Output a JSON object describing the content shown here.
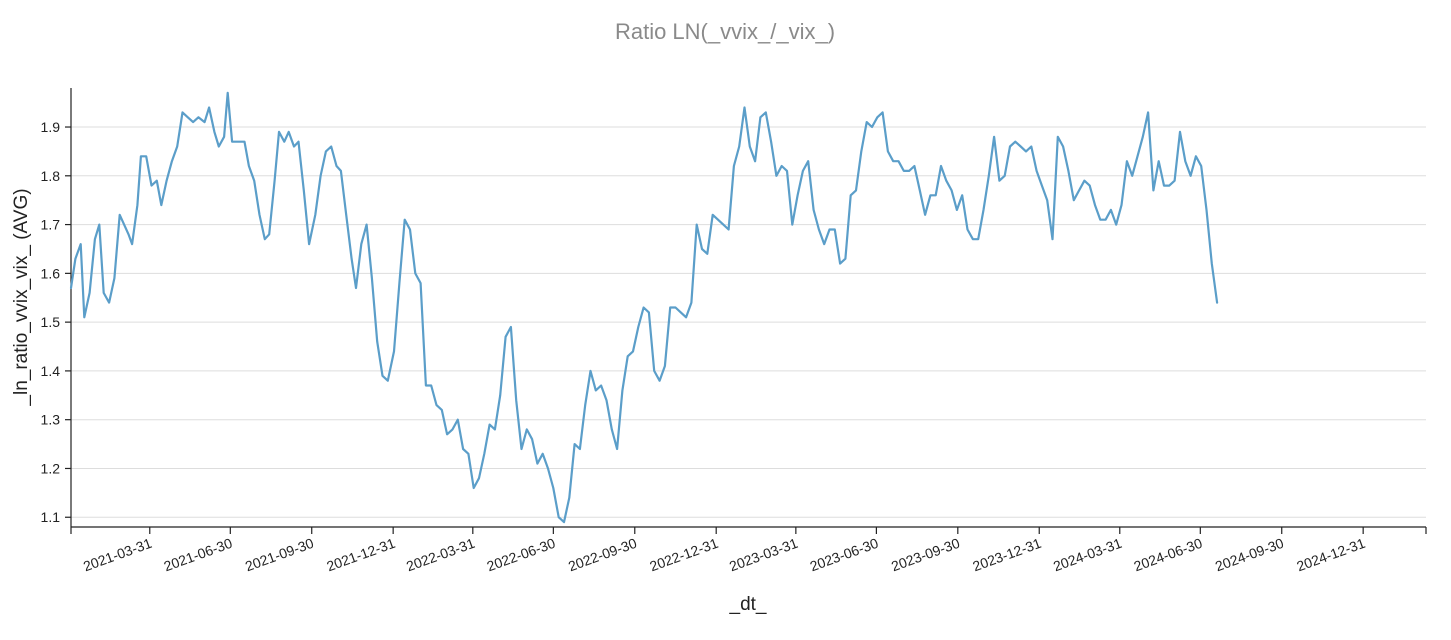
{
  "chart_data": {
    "type": "line",
    "title": "Ratio LN(_vvix_/_vix_)",
    "xlabel": "_dt_",
    "ylabel": "_ln_ratio_vvix_vix_ (AVG)",
    "x_range": [
      "2021-01-01",
      "2025-03-12"
    ],
    "ylim": [
      1.08,
      1.98
    ],
    "x_ticks": [
      "2021-03-31",
      "2021-06-30",
      "2021-09-30",
      "2021-12-31",
      "2022-03-31",
      "2022-06-30",
      "2022-09-30",
      "2022-12-31",
      "2023-03-31",
      "2023-06-30",
      "2023-09-30",
      "2023-12-31",
      "2024-03-31",
      "2024-06-30",
      "2024-09-30",
      "2024-12-31"
    ],
    "y_ticks": [
      "1.1",
      "1.2",
      "1.3",
      "1.4",
      "1.5",
      "1.6",
      "1.7",
      "1.8",
      "1.9"
    ],
    "grid": "horizontal",
    "series": [
      {
        "color": "#5b9ec9",
        "points": [
          [
            "2021-01-01",
            1.57
          ],
          [
            "2021-01-06",
            1.63
          ],
          [
            "2021-01-12",
            1.66
          ],
          [
            "2021-01-16",
            1.51
          ],
          [
            "2021-01-22",
            1.56
          ],
          [
            "2021-01-28",
            1.67
          ],
          [
            "2021-02-02",
            1.7
          ],
          [
            "2021-02-07",
            1.56
          ],
          [
            "2021-02-13",
            1.54
          ],
          [
            "2021-02-19",
            1.59
          ],
          [
            "2021-02-25",
            1.72
          ],
          [
            "2021-03-02",
            1.7
          ],
          [
            "2021-03-07",
            1.68
          ],
          [
            "2021-03-11",
            1.66
          ],
          [
            "2021-03-17",
            1.74
          ],
          [
            "2021-03-21",
            1.84
          ],
          [
            "2021-03-27",
            1.84
          ],
          [
            "2021-04-02",
            1.78
          ],
          [
            "2021-04-08",
            1.79
          ],
          [
            "2021-04-13",
            1.74
          ],
          [
            "2021-04-19",
            1.79
          ],
          [
            "2021-04-25",
            1.83
          ],
          [
            "2021-05-01",
            1.86
          ],
          [
            "2021-05-07",
            1.93
          ],
          [
            "2021-05-13",
            1.92
          ],
          [
            "2021-05-19",
            1.91
          ],
          [
            "2021-05-25",
            1.92
          ],
          [
            "2021-06-01",
            1.91
          ],
          [
            "2021-06-06",
            1.94
          ],
          [
            "2021-06-12",
            1.89
          ],
          [
            "2021-06-17",
            1.86
          ],
          [
            "2021-06-23",
            1.88
          ],
          [
            "2021-06-27",
            1.97
          ],
          [
            "2021-07-02",
            1.87
          ],
          [
            "2021-07-09",
            1.87
          ],
          [
            "2021-07-16",
            1.87
          ],
          [
            "2021-07-21",
            1.82
          ],
          [
            "2021-07-27",
            1.79
          ],
          [
            "2021-08-02",
            1.72
          ],
          [
            "2021-08-08",
            1.67
          ],
          [
            "2021-08-13",
            1.68
          ],
          [
            "2021-08-19",
            1.79
          ],
          [
            "2021-08-24",
            1.89
          ],
          [
            "2021-08-30",
            1.87
          ],
          [
            "2021-09-04",
            1.89
          ],
          [
            "2021-09-10",
            1.86
          ],
          [
            "2021-09-15",
            1.87
          ],
          [
            "2021-09-21",
            1.77
          ],
          [
            "2021-09-27",
            1.66
          ],
          [
            "2021-10-04",
            1.72
          ],
          [
            "2021-10-10",
            1.8
          ],
          [
            "2021-10-16",
            1.85
          ],
          [
            "2021-10-22",
            1.86
          ],
          [
            "2021-10-28",
            1.82
          ],
          [
            "2021-11-02",
            1.81
          ],
          [
            "2021-11-08",
            1.72
          ],
          [
            "2021-11-14",
            1.63
          ],
          [
            "2021-11-19",
            1.57
          ],
          [
            "2021-11-25",
            1.66
          ],
          [
            "2021-12-01",
            1.7
          ],
          [
            "2021-12-07",
            1.59
          ],
          [
            "2021-12-13",
            1.46
          ],
          [
            "2021-12-19",
            1.39
          ],
          [
            "2021-12-25",
            1.38
          ],
          [
            "2022-01-01",
            1.44
          ],
          [
            "2022-01-07",
            1.58
          ],
          [
            "2022-01-13",
            1.71
          ],
          [
            "2022-01-19",
            1.69
          ],
          [
            "2022-01-25",
            1.6
          ],
          [
            "2022-01-31",
            1.58
          ],
          [
            "2022-02-06",
            1.37
          ],
          [
            "2022-02-12",
            1.37
          ],
          [
            "2022-02-18",
            1.33
          ],
          [
            "2022-02-24",
            1.32
          ],
          [
            "2022-03-02",
            1.27
          ],
          [
            "2022-03-08",
            1.28
          ],
          [
            "2022-03-14",
            1.3
          ],
          [
            "2022-03-20",
            1.24
          ],
          [
            "2022-03-26",
            1.23
          ],
          [
            "2022-04-01",
            1.16
          ],
          [
            "2022-04-07",
            1.18
          ],
          [
            "2022-04-13",
            1.23
          ],
          [
            "2022-04-19",
            1.29
          ],
          [
            "2022-04-25",
            1.28
          ],
          [
            "2022-05-01",
            1.35
          ],
          [
            "2022-05-07",
            1.47
          ],
          [
            "2022-05-13",
            1.49
          ],
          [
            "2022-05-19",
            1.34
          ],
          [
            "2022-05-25",
            1.24
          ],
          [
            "2022-05-31",
            1.28
          ],
          [
            "2022-06-06",
            1.26
          ],
          [
            "2022-06-12",
            1.21
          ],
          [
            "2022-06-18",
            1.23
          ],
          [
            "2022-06-24",
            1.2
          ],
          [
            "2022-06-30",
            1.16
          ],
          [
            "2022-07-06",
            1.1
          ],
          [
            "2022-07-12",
            1.09
          ],
          [
            "2022-07-18",
            1.14
          ],
          [
            "2022-07-24",
            1.25
          ],
          [
            "2022-07-30",
            1.24
          ],
          [
            "2022-08-05",
            1.33
          ],
          [
            "2022-08-11",
            1.4
          ],
          [
            "2022-08-17",
            1.36
          ],
          [
            "2022-08-23",
            1.37
          ],
          [
            "2022-08-29",
            1.34
          ],
          [
            "2022-09-04",
            1.28
          ],
          [
            "2022-09-10",
            1.24
          ],
          [
            "2022-09-16",
            1.36
          ],
          [
            "2022-09-22",
            1.43
          ],
          [
            "2022-09-28",
            1.44
          ],
          [
            "2022-10-04",
            1.49
          ],
          [
            "2022-10-10",
            1.53
          ],
          [
            "2022-10-16",
            1.52
          ],
          [
            "2022-10-22",
            1.4
          ],
          [
            "2022-10-28",
            1.38
          ],
          [
            "2022-11-03",
            1.41
          ],
          [
            "2022-11-09",
            1.53
          ],
          [
            "2022-11-15",
            1.53
          ],
          [
            "2022-11-21",
            1.52
          ],
          [
            "2022-11-27",
            1.51
          ],
          [
            "2022-12-03",
            1.54
          ],
          [
            "2022-12-09",
            1.7
          ],
          [
            "2022-12-15",
            1.65
          ],
          [
            "2022-12-21",
            1.64
          ],
          [
            "2022-12-27",
            1.72
          ],
          [
            "2023-01-02",
            1.71
          ],
          [
            "2023-01-08",
            1.7
          ],
          [
            "2023-01-14",
            1.69
          ],
          [
            "2023-01-20",
            1.82
          ],
          [
            "2023-01-26",
            1.86
          ],
          [
            "2023-02-01",
            1.94
          ],
          [
            "2023-02-07",
            1.86
          ],
          [
            "2023-02-13",
            1.83
          ],
          [
            "2023-02-19",
            1.92
          ],
          [
            "2023-02-25",
            1.93
          ],
          [
            "2023-03-03",
            1.87
          ],
          [
            "2023-03-09",
            1.8
          ],
          [
            "2023-03-15",
            1.82
          ],
          [
            "2023-03-21",
            1.81
          ],
          [
            "2023-03-27",
            1.7
          ],
          [
            "2023-04-02",
            1.76
          ],
          [
            "2023-04-08",
            1.81
          ],
          [
            "2023-04-14",
            1.83
          ],
          [
            "2023-04-20",
            1.73
          ],
          [
            "2023-04-26",
            1.69
          ],
          [
            "2023-05-02",
            1.66
          ],
          [
            "2023-05-08",
            1.69
          ],
          [
            "2023-05-14",
            1.69
          ],
          [
            "2023-05-20",
            1.62
          ],
          [
            "2023-05-26",
            1.63
          ],
          [
            "2023-06-01",
            1.76
          ],
          [
            "2023-06-07",
            1.77
          ],
          [
            "2023-06-13",
            1.85
          ],
          [
            "2023-06-19",
            1.91
          ],
          [
            "2023-06-25",
            1.9
          ],
          [
            "2023-07-01",
            1.92
          ],
          [
            "2023-07-07",
            1.93
          ],
          [
            "2023-07-13",
            1.85
          ],
          [
            "2023-07-19",
            1.83
          ],
          [
            "2023-07-25",
            1.83
          ],
          [
            "2023-07-31",
            1.81
          ],
          [
            "2023-08-06",
            1.81
          ],
          [
            "2023-08-12",
            1.82
          ],
          [
            "2023-08-18",
            1.77
          ],
          [
            "2023-08-24",
            1.72
          ],
          [
            "2023-08-30",
            1.76
          ],
          [
            "2023-09-05",
            1.76
          ],
          [
            "2023-09-11",
            1.82
          ],
          [
            "2023-09-17",
            1.79
          ],
          [
            "2023-09-23",
            1.77
          ],
          [
            "2023-09-29",
            1.73
          ],
          [
            "2023-10-05",
            1.76
          ],
          [
            "2023-10-11",
            1.69
          ],
          [
            "2023-10-17",
            1.67
          ],
          [
            "2023-10-23",
            1.67
          ],
          [
            "2023-10-29",
            1.73
          ],
          [
            "2023-11-04",
            1.8
          ],
          [
            "2023-11-10",
            1.88
          ],
          [
            "2023-11-16",
            1.79
          ],
          [
            "2023-11-22",
            1.8
          ],
          [
            "2023-11-28",
            1.86
          ],
          [
            "2023-12-04",
            1.87
          ],
          [
            "2023-12-10",
            1.86
          ],
          [
            "2023-12-16",
            1.85
          ],
          [
            "2023-12-22",
            1.86
          ],
          [
            "2023-12-28",
            1.81
          ],
          [
            "2024-01-03",
            1.78
          ],
          [
            "2024-01-09",
            1.75
          ],
          [
            "2024-01-15",
            1.67
          ],
          [
            "2024-01-21",
            1.88
          ],
          [
            "2024-01-27",
            1.86
          ],
          [
            "2024-02-02",
            1.81
          ],
          [
            "2024-02-08",
            1.75
          ],
          [
            "2024-02-14",
            1.77
          ],
          [
            "2024-02-20",
            1.79
          ],
          [
            "2024-02-26",
            1.78
          ],
          [
            "2024-03-03",
            1.74
          ],
          [
            "2024-03-09",
            1.71
          ],
          [
            "2024-03-15",
            1.71
          ],
          [
            "2024-03-21",
            1.73
          ],
          [
            "2024-03-27",
            1.7
          ],
          [
            "2024-04-02",
            1.74
          ],
          [
            "2024-04-08",
            1.83
          ],
          [
            "2024-04-14",
            1.8
          ],
          [
            "2024-04-20",
            1.84
          ],
          [
            "2024-04-26",
            1.88
          ],
          [
            "2024-05-02",
            1.93
          ],
          [
            "2024-05-08",
            1.77
          ],
          [
            "2024-05-14",
            1.83
          ],
          [
            "2024-05-20",
            1.78
          ],
          [
            "2024-05-26",
            1.78
          ],
          [
            "2024-06-01",
            1.79
          ],
          [
            "2024-06-07",
            1.89
          ],
          [
            "2024-06-13",
            1.83
          ],
          [
            "2024-06-19",
            1.8
          ],
          [
            "2024-06-25",
            1.84
          ],
          [
            "2024-07-01",
            1.82
          ],
          [
            "2024-07-07",
            1.73
          ],
          [
            "2024-07-13",
            1.62
          ],
          [
            "2024-07-19",
            1.54
          ]
        ]
      }
    ]
  }
}
